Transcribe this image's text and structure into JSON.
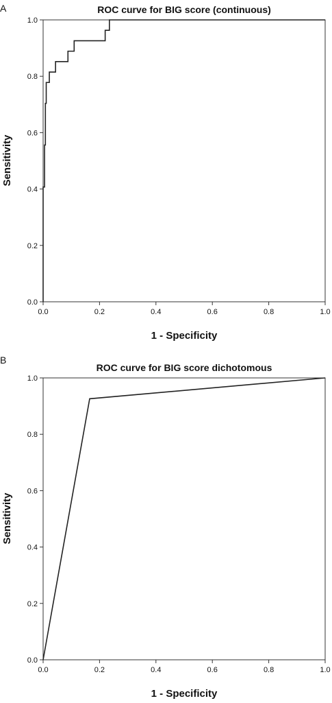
{
  "chart_data": [
    {
      "panel": "A",
      "type": "line",
      "title": "ROC curve for BIG score (continuous)",
      "xlabel": "1 - Specificity",
      "ylabel": "Sensitivity",
      "xlim": [
        0,
        1
      ],
      "ylim": [
        0,
        1
      ],
      "xticks": [
        "0.0",
        "0.2",
        "0.4",
        "0.6",
        "0.8",
        "1.0"
      ],
      "yticks": [
        "0.0",
        "0.2",
        "0.4",
        "0.6",
        "0.8",
        "1.0"
      ],
      "grid": false,
      "series": [
        {
          "x": [
            0.0,
            0.0,
            0.005,
            0.005,
            0.008,
            0.008,
            0.011,
            0.011,
            0.022,
            0.022,
            0.044,
            0.044,
            0.088,
            0.088,
            0.11,
            0.11,
            0.22,
            0.22,
            0.235,
            0.235,
            1.0
          ],
          "y": [
            0.0,
            0.407,
            0.407,
            0.556,
            0.556,
            0.704,
            0.704,
            0.778,
            0.778,
            0.815,
            0.815,
            0.852,
            0.852,
            0.889,
            0.889,
            0.926,
            0.926,
            0.963,
            0.963,
            1.0,
            1.0
          ]
        }
      ]
    },
    {
      "panel": "B",
      "type": "line",
      "title": "ROC curve for BIG score dichotomous",
      "xlabel": "1 - Specificity",
      "ylabel": "Sensitivity",
      "xlim": [
        0,
        1
      ],
      "ylim": [
        0,
        1
      ],
      "xticks": [
        "0.0",
        "0.2",
        "0.4",
        "0.6",
        "0.8",
        "1.0"
      ],
      "yticks": [
        "0.0",
        "0.2",
        "0.4",
        "0.6",
        "0.8",
        "1.0"
      ],
      "grid": false,
      "series": [
        {
          "x": [
            0.0,
            0.165,
            1.0
          ],
          "y": [
            0.0,
            0.926,
            1.0
          ]
        }
      ]
    }
  ]
}
